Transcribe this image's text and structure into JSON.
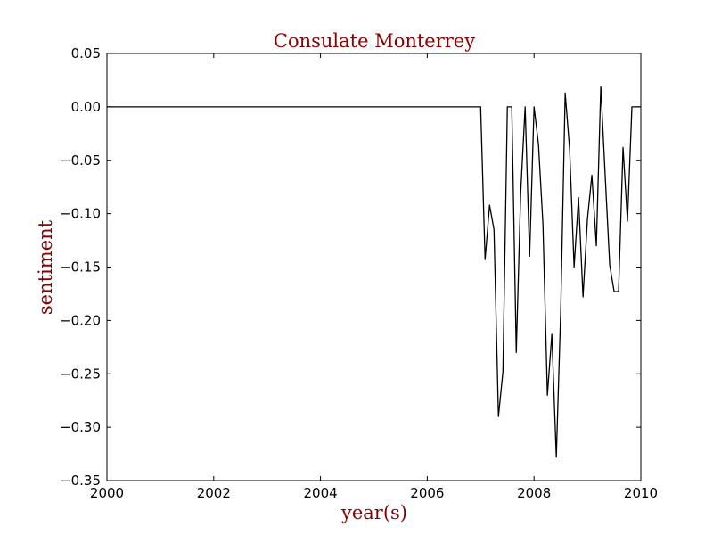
{
  "chart_data": {
    "type": "line",
    "title": "Consulate Monterrey",
    "xlabel": "year(s)",
    "ylabel": "sentiment",
    "xlim": [
      2000,
      2010
    ],
    "ylim": [
      -0.35,
      0.05
    ],
    "x_ticks": [
      2000,
      2002,
      2004,
      2006,
      2008,
      2010
    ],
    "x_tick_labels": [
      "2000",
      "2002",
      "2004",
      "2006",
      "2008",
      "2010"
    ],
    "y_ticks": [
      0.05,
      0.0,
      -0.05,
      -0.1,
      -0.15,
      -0.2,
      -0.25,
      -0.3,
      -0.35
    ],
    "y_tick_labels": [
      "0.05",
      "0.00",
      "−0.05",
      "−0.10",
      "−0.15",
      "−0.20",
      "−0.25",
      "−0.30",
      "−0.35"
    ],
    "grid": false,
    "series": [
      {
        "color": "#000000",
        "x": [
          2000.0,
          2007.0,
          2007.083,
          2007.167,
          2007.25,
          2007.333,
          2007.417,
          2007.5,
          2007.583,
          2007.667,
          2007.75,
          2007.833,
          2007.917,
          2008.0,
          2008.083,
          2008.167,
          2008.25,
          2008.333,
          2008.417,
          2008.5,
          2008.583,
          2008.667,
          2008.75,
          2008.833,
          2008.917,
          2009.0,
          2009.083,
          2009.167,
          2009.25,
          2009.333,
          2009.417,
          2009.5,
          2009.583,
          2009.667,
          2009.75,
          2009.833,
          2009.917,
          2010.0
        ],
        "y": [
          0.0,
          0.0,
          -0.143,
          -0.092,
          -0.115,
          -0.29,
          -0.248,
          0.0,
          0.0,
          -0.23,
          -0.08,
          0.0,
          -0.14,
          0.0,
          -0.035,
          -0.11,
          -0.27,
          -0.213,
          -0.328,
          -0.19,
          0.013,
          -0.04,
          -0.15,
          -0.085,
          -0.178,
          -0.105,
          -0.064,
          -0.13,
          0.019,
          -0.065,
          -0.148,
          -0.173,
          -0.173,
          -0.038,
          -0.107,
          0.0,
          0.0,
          0.0
        ]
      }
    ]
  }
}
